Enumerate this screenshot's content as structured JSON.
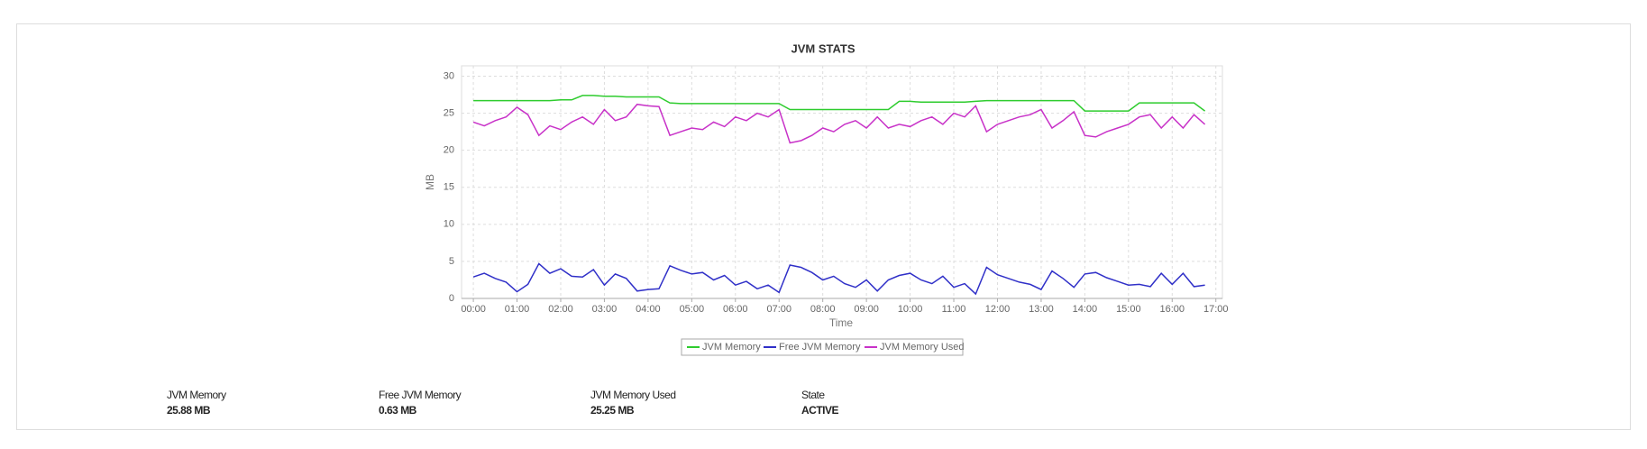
{
  "chart_data": {
    "type": "line",
    "title": "JVM  STATS",
    "x_label": "Time",
    "y_label": "MB",
    "x": [
      0,
      0.25,
      0.5,
      0.75,
      1,
      1.25,
      1.5,
      1.75,
      2,
      2.25,
      2.5,
      2.75,
      3,
      3.25,
      3.5,
      3.75,
      4,
      4.25,
      4.5,
      4.75,
      5,
      5.25,
      5.5,
      5.75,
      6,
      6.25,
      6.5,
      6.75,
      7,
      7.25,
      7.5,
      7.75,
      8,
      8.25,
      8.5,
      8.75,
      9,
      9.25,
      9.5,
      9.75,
      10,
      10.25,
      10.5,
      10.75,
      11,
      11.25,
      11.5,
      11.75,
      12,
      12.25,
      12.5,
      12.75,
      13,
      13.25,
      13.5,
      13.75,
      14,
      14.25,
      14.5,
      14.75,
      15,
      15.25,
      15.5,
      15.75,
      16,
      16.25,
      16.5,
      16.75
    ],
    "series": [
      {
        "name": "JVM Memory",
        "color": "#2ecc2e",
        "values": [
          26.7,
          26.7,
          26.7,
          26.7,
          26.7,
          26.7,
          26.7,
          26.7,
          26.8,
          26.8,
          27.4,
          27.4,
          27.3,
          27.3,
          27.2,
          27.2,
          27.2,
          27.2,
          26.4,
          26.3,
          26.3,
          26.3,
          26.3,
          26.3,
          26.3,
          26.3,
          26.3,
          26.3,
          26.3,
          25.5,
          25.5,
          25.5,
          25.5,
          25.5,
          25.5,
          25.5,
          25.5,
          25.5,
          25.5,
          26.6,
          26.6,
          26.5,
          26.5,
          26.5,
          26.5,
          26.5,
          26.6,
          26.7,
          26.7,
          26.7,
          26.7,
          26.7,
          26.7,
          26.7,
          26.7,
          26.7,
          25.3,
          25.3,
          25.3,
          25.3,
          25.3,
          26.4,
          26.4,
          26.4,
          26.4,
          26.4,
          26.4,
          25.3
        ]
      },
      {
        "name": "Free JVM Memory",
        "color": "#3030c8",
        "values": [
          2.9,
          3.4,
          2.7,
          2.2,
          0.9,
          1.9,
          4.7,
          3.4,
          4.0,
          3.0,
          2.9,
          3.9,
          1.8,
          3.3,
          2.7,
          1.0,
          1.2,
          1.3,
          4.4,
          3.8,
          3.3,
          3.5,
          2.5,
          3.1,
          1.8,
          2.3,
          1.3,
          1.8,
          0.8,
          4.5,
          4.2,
          3.5,
          2.5,
          3.0,
          2.0,
          1.5,
          2.5,
          1.0,
          2.5,
          3.1,
          3.4,
          2.5,
          2.0,
          3.0,
          1.5,
          2.0,
          0.6,
          4.2,
          3.2,
          2.7,
          2.2,
          1.9,
          1.2,
          3.7,
          2.7,
          1.5,
          3.3,
          3.5,
          2.8,
          2.3,
          1.8,
          1.9,
          1.6,
          3.4,
          1.9,
          3.4,
          1.6,
          1.8
        ]
      },
      {
        "name": "JVM Memory Used",
        "color": "#c832c8",
        "values": [
          23.8,
          23.3,
          24.0,
          24.5,
          25.8,
          24.8,
          22.0,
          23.3,
          22.8,
          23.8,
          24.5,
          23.5,
          25.5,
          24.0,
          24.5,
          26.2,
          26.0,
          25.9,
          22.0,
          22.5,
          23.0,
          22.8,
          23.8,
          23.2,
          24.5,
          24.0,
          25.0,
          24.5,
          25.5,
          21.0,
          21.3,
          22.0,
          23.0,
          22.5,
          23.5,
          24.0,
          23.0,
          24.5,
          23.0,
          23.5,
          23.2,
          24.0,
          24.5,
          23.5,
          25.0,
          24.5,
          26.0,
          22.5,
          23.5,
          24.0,
          24.5,
          24.8,
          25.5,
          23.0,
          24.0,
          25.2,
          22.0,
          21.8,
          22.5,
          23.0,
          23.5,
          24.5,
          24.8,
          23.0,
          24.5,
          23.0,
          24.8,
          23.5
        ]
      }
    ],
    "xlim": [
      -0.27,
      17.15
    ],
    "xticks": [
      {
        "value": 0,
        "label": "00:00"
      },
      {
        "value": 1,
        "label": "01:00"
      },
      {
        "value": 2,
        "label": "02:00"
      },
      {
        "value": 3,
        "label": "03:00"
      },
      {
        "value": 4,
        "label": "04:00"
      },
      {
        "value": 5,
        "label": "05:00"
      },
      {
        "value": 6,
        "label": "06:00"
      },
      {
        "value": 7,
        "label": "07:00"
      },
      {
        "value": 8,
        "label": "08:00"
      },
      {
        "value": 9,
        "label": "09:00"
      },
      {
        "value": 10,
        "label": "10:00"
      },
      {
        "value": 11,
        "label": "11:00"
      },
      {
        "value": 12,
        "label": "12:00"
      },
      {
        "value": 13,
        "label": "13:00"
      },
      {
        "value": 14,
        "label": "14:00"
      },
      {
        "value": 15,
        "label": "15:00"
      },
      {
        "value": 16,
        "label": "16:00"
      },
      {
        "value": 17,
        "label": "17:00"
      }
    ],
    "ylim": [
      0,
      31.4
    ],
    "yticks": [
      0,
      5,
      10,
      15,
      20,
      25,
      30
    ],
    "grid": true,
    "legend": "bottom"
  },
  "summary": [
    {
      "label": "JVM Memory",
      "value": "25.88 MB"
    },
    {
      "label": "Free JVM Memory",
      "value": "0.63 MB"
    },
    {
      "label": "JVM Memory Used",
      "value": "25.25 MB"
    },
    {
      "label": "State",
      "value": "ACTIVE"
    }
  ]
}
